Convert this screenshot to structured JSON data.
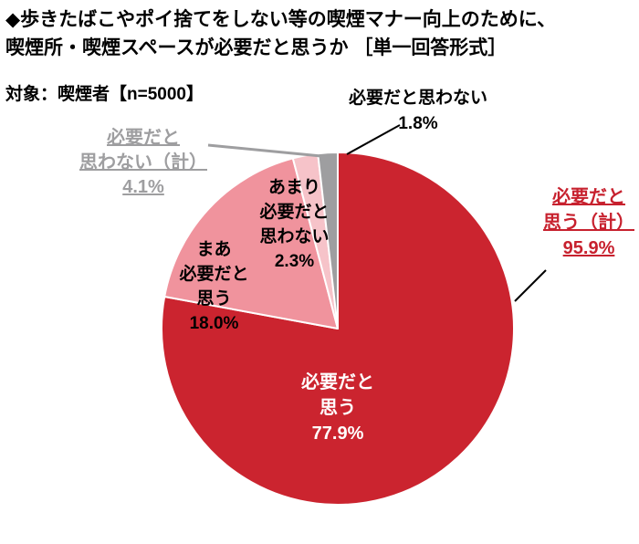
{
  "title": {
    "text": "◆歩きたばこやポイ捨てをしない等の喫煙マナー向上のために、\n喫煙所・喫煙スペースが必要だと思うか ［単一回答形式］"
  },
  "sample": {
    "text": "対象：喫煙者【n=5000】"
  },
  "chart_data": {
    "type": "pie",
    "title": "喫煙所・喫煙スペースが必要だと思うか",
    "start_angle_deg": 0,
    "direction": "clockwise",
    "slices": [
      {
        "label": "必要だと思う",
        "value": 77.9,
        "color": "#CB242F",
        "text_color": "#FFFFFF"
      },
      {
        "label": "まあ必要だと思う",
        "value": 18.0,
        "color": "#F0939D",
        "text_color": "#000000"
      },
      {
        "label": "あまり必要だと思わない",
        "value": 2.3,
        "color": "#F6C3C9",
        "text_color": "#000000"
      },
      {
        "label": "必要だと思わない",
        "value": 1.8,
        "color": "#9E9EA0",
        "text_color": "#000000"
      }
    ],
    "aggregates": [
      {
        "label": "必要だと思う（計）",
        "value": "95.9%",
        "color": "#C7212E",
        "position": "right"
      },
      {
        "label": "必要だと思わない（計）",
        "value": "4.1%",
        "color": "#9E9EA0",
        "position": "left"
      }
    ]
  },
  "pie_labels": {
    "need": "必要だと\n思う\n77.9%",
    "somewhat": "まあ\n必要だと\n思う\n18.0%",
    "not_really": "あまり\n必要だと\n思わない\n2.3%",
    "not_needed_callout": "必要だと思わない\n1.8%",
    "agg_need": "必要だと\n思う（計）\n95.9%",
    "agg_not_needed": "必要だと\n思わない（計）\n4.1%"
  }
}
